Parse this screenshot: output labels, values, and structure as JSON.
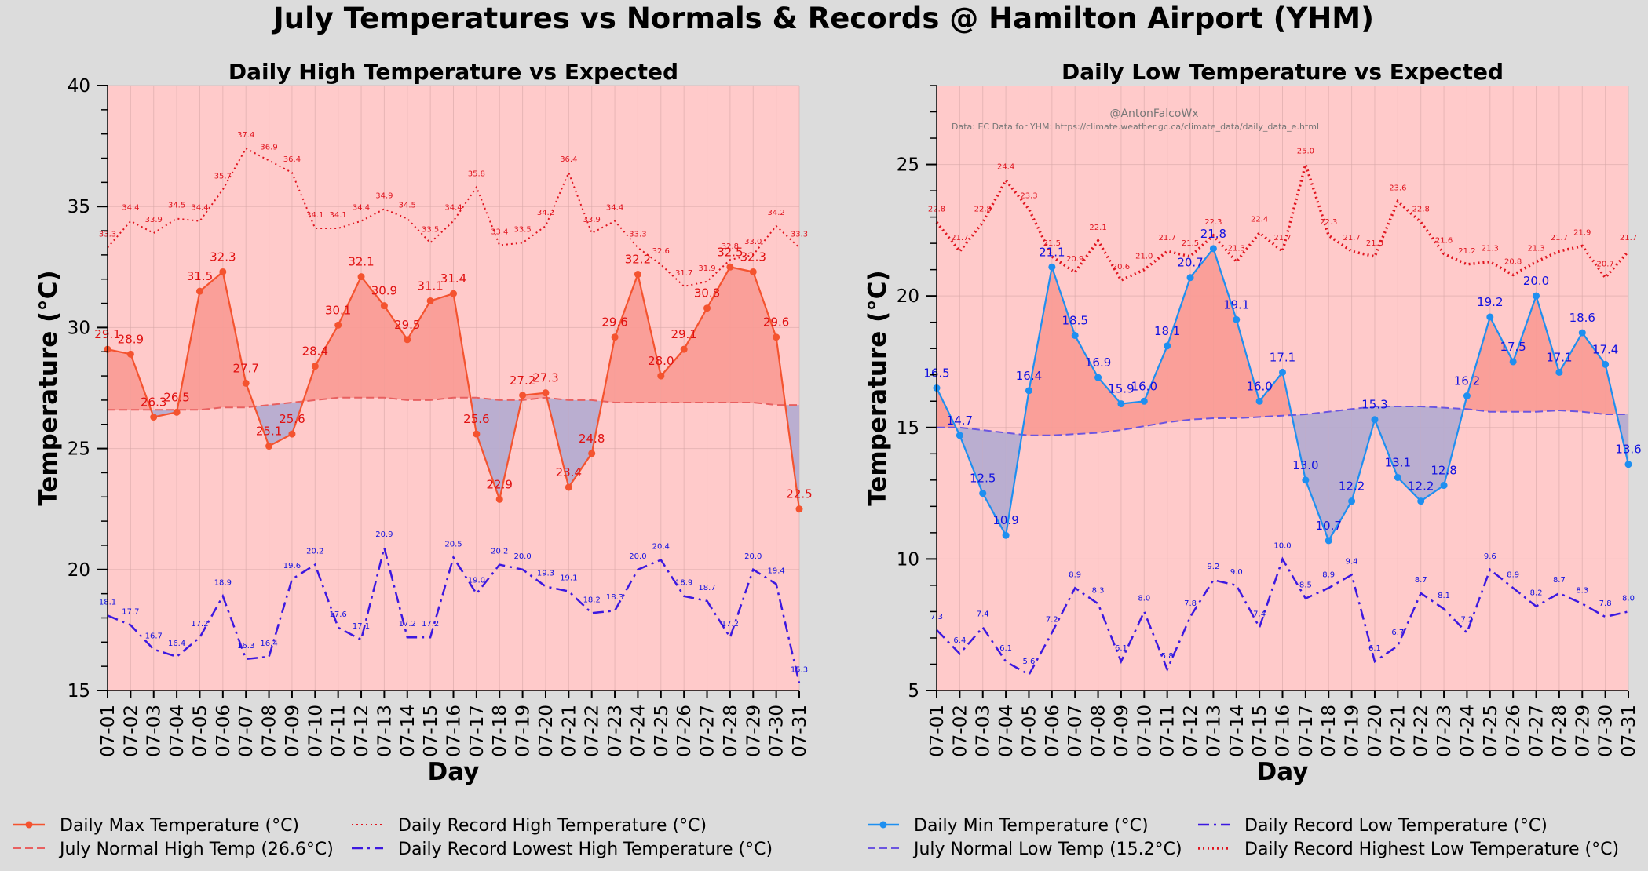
{
  "title": "July Temperatures vs Normals & Records @ Hamilton Airport (YHM)",
  "colors": {
    "background": "#dcdcdc",
    "plot_bg": "#ffcaca",
    "max": "#f4532f",
    "min": "#1e8ff0",
    "fill_above": "#f99a93",
    "fill_below": "#b3abd0",
    "normal_high": "#e86060",
    "normal_low": "#6b55e0",
    "record_red": "#e0141e",
    "record_blue": "#3c18e0",
    "label_red": "#e01010",
    "label_blue": "#1010e0"
  },
  "chart_data": [
    {
      "type": "line",
      "title": "Daily High Temperature vs Expected",
      "xlabel": "Day",
      "ylabel": "Temperature (°C)",
      "ylim": [
        15,
        40
      ],
      "yticks": [
        "15",
        "20",
        "25",
        "30",
        "35",
        "40"
      ],
      "categories": [
        "07-01",
        "07-02",
        "07-03",
        "07-04",
        "07-05",
        "07-06",
        "07-07",
        "07-08",
        "07-09",
        "07-10",
        "07-11",
        "07-12",
        "07-13",
        "07-14",
        "07-15",
        "07-16",
        "07-17",
        "07-18",
        "07-19",
        "07-20",
        "07-21",
        "07-22",
        "07-23",
        "07-24",
        "07-25",
        "07-26",
        "07-27",
        "07-28",
        "07-29",
        "07-30",
        "07-31"
      ],
      "series": [
        {
          "name": "Daily Max Temperature (°C)",
          "values": [
            29.1,
            28.9,
            26.3,
            26.5,
            31.5,
            32.3,
            27.7,
            25.1,
            25.6,
            28.4,
            30.1,
            32.1,
            30.9,
            29.5,
            31.1,
            31.4,
            25.6,
            22.9,
            27.2,
            27.3,
            23.4,
            24.8,
            29.6,
            32.2,
            28.0,
            29.1,
            30.8,
            32.5,
            32.3,
            29.6,
            22.5
          ]
        },
        {
          "name": "July Normal High Temp (26.6°C)",
          "values": [
            26.6,
            26.6,
            26.6,
            26.6,
            26.6,
            26.7,
            26.7,
            26.8,
            26.9,
            27.0,
            27.1,
            27.1,
            27.1,
            27.0,
            27.0,
            27.1,
            27.1,
            27.0,
            27.0,
            27.1,
            27.0,
            27.0,
            26.9,
            26.9,
            26.9,
            26.9,
            26.9,
            26.9,
            26.9,
            26.8,
            26.8
          ]
        },
        {
          "name": "Daily Record High Temperature (°C)",
          "values": [
            33.3,
            34.4,
            33.9,
            34.5,
            34.4,
            35.7,
            37.4,
            36.9,
            36.4,
            34.1,
            34.1,
            34.4,
            34.9,
            34.5,
            33.5,
            34.4,
            35.8,
            33.4,
            33.5,
            34.2,
            36.4,
            33.9,
            34.4,
            33.3,
            32.6,
            31.7,
            31.9,
            32.8,
            33.0,
            34.2,
            33.3
          ]
        },
        {
          "name": "Daily Record Lowest High Temperature (°C)",
          "values": [
            18.1,
            17.7,
            16.7,
            16.4,
            17.2,
            18.9,
            16.3,
            16.4,
            19.6,
            20.2,
            17.6,
            17.1,
            20.9,
            17.2,
            17.2,
            20.5,
            19.0,
            20.2,
            20.0,
            19.3,
            19.1,
            18.2,
            18.3,
            20.0,
            20.4,
            18.9,
            18.7,
            17.2,
            20.0,
            19.4,
            15.3
          ]
        }
      ],
      "legend": "bottom-left"
    },
    {
      "type": "line",
      "title": "Daily Low Temperature vs Expected",
      "xlabel": "Day",
      "ylabel": "Temperature (°C)",
      "ylim": [
        5,
        28
      ],
      "yticks": [
        "5",
        "10",
        "15",
        "20",
        "25"
      ],
      "categories": [
        "07-01",
        "07-02",
        "07-03",
        "07-04",
        "07-05",
        "07-06",
        "07-07",
        "07-08",
        "07-09",
        "07-10",
        "07-11",
        "07-12",
        "07-13",
        "07-14",
        "07-15",
        "07-16",
        "07-17",
        "07-18",
        "07-19",
        "07-20",
        "07-21",
        "07-22",
        "07-23",
        "07-24",
        "07-25",
        "07-26",
        "07-27",
        "07-28",
        "07-29",
        "07-30",
        "07-31"
      ],
      "series": [
        {
          "name": "Daily Min Temperature (°C)",
          "values": [
            16.5,
            14.7,
            12.5,
            10.9,
            16.4,
            21.1,
            18.5,
            16.9,
            15.9,
            16.0,
            18.1,
            20.7,
            21.8,
            19.1,
            16.0,
            17.1,
            13.0,
            10.7,
            12.2,
            15.3,
            13.1,
            12.2,
            12.8,
            16.2,
            19.2,
            17.5,
            20.0,
            17.1,
            18.6,
            17.4,
            13.6
          ]
        },
        {
          "name": "July Normal Low Temp (15.2°C)",
          "values": [
            15.0,
            15.0,
            14.9,
            14.8,
            14.7,
            14.7,
            14.75,
            14.8,
            14.9,
            15.05,
            15.2,
            15.3,
            15.35,
            15.35,
            15.4,
            15.45,
            15.5,
            15.6,
            15.7,
            15.8,
            15.8,
            15.8,
            15.75,
            15.7,
            15.6,
            15.6,
            15.6,
            15.65,
            15.6,
            15.5,
            15.5
          ]
        },
        {
          "name": "Daily Record Low Temperature (°C)",
          "values": [
            7.3,
            6.4,
            7.4,
            6.1,
            5.6,
            7.2,
            8.9,
            8.3,
            6.1,
            8.0,
            5.8,
            7.8,
            9.2,
            9.0,
            7.4,
            10.0,
            8.5,
            8.9,
            9.4,
            6.1,
            6.7,
            8.7,
            8.1,
            7.2,
            9.6,
            8.9,
            8.2,
            8.7,
            8.3,
            7.8,
            8.0
          ]
        },
        {
          "name": "Daily Record Highest Low Temperature (°C)",
          "values": [
            22.8,
            21.7,
            22.8,
            24.4,
            23.3,
            21.5,
            20.9,
            22.1,
            20.6,
            21.0,
            21.7,
            21.5,
            22.3,
            21.3,
            22.4,
            21.7,
            25.0,
            22.3,
            21.7,
            21.5,
            23.6,
            22.8,
            21.6,
            21.2,
            21.3,
            20.8,
            21.3,
            21.7,
            21.9,
            20.7,
            21.7
          ]
        }
      ],
      "legend": "bottom-left"
    }
  ],
  "credit": "@AntonFalcoWx",
  "source": "Data: EC Data for YHM: https://climate.weather.gc.ca/climate_data/daily_data_e.html"
}
